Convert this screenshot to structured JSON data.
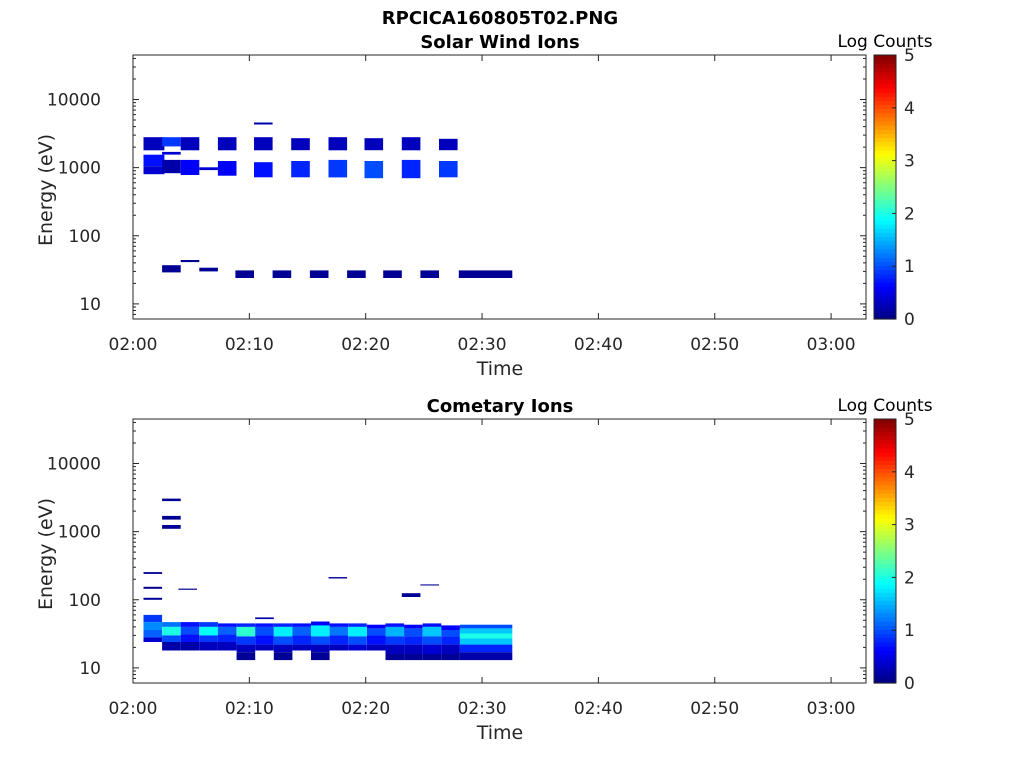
{
  "figure_title": "RPCICA160805T02.PNG",
  "chart_data": [
    {
      "type": "heatmap",
      "title": "Solar Wind Ions",
      "xlabel": "Time",
      "ylabel": "Energy (eV)",
      "x_ticks": [
        "02:00",
        "02:10",
        "02:20",
        "02:30",
        "02:40",
        "02:50",
        "03:00"
      ],
      "x_range_minutes": [
        0,
        63
      ],
      "y_scale": "log",
      "y_ticks": [
        "10",
        "100",
        "1000",
        "10000"
      ],
      "y_range": [
        6,
        45000
      ],
      "colorbar": {
        "label": "Log Counts",
        "range": [
          0,
          5
        ],
        "ticks": [
          "0",
          "1",
          "2",
          "3",
          "4",
          "5"
        ],
        "colormap": "jet"
      },
      "cells": [
        [
          0.9,
          2.7,
          1800,
          2800,
          0.3
        ],
        [
          0.9,
          2.7,
          1050,
          1550,
          0.7
        ],
        [
          0.9,
          2.7,
          800,
          1050,
          0.4
        ],
        [
          2.5,
          4.1,
          2050,
          2800,
          0.9
        ],
        [
          2.5,
          4.1,
          1550,
          1700,
          0.4
        ],
        [
          2.5,
          4.1,
          830,
          1300,
          0.2
        ],
        [
          4.1,
          5.7,
          1800,
          2800,
          0.3
        ],
        [
          4.1,
          5.7,
          780,
          1300,
          0.6
        ],
        [
          5.7,
          7.3,
          920,
          1010,
          0.4
        ],
        [
          7.3,
          8.9,
          1800,
          2800,
          0.3
        ],
        [
          7.3,
          8.9,
          760,
          1250,
          0.6
        ],
        [
          10.4,
          12.0,
          4300,
          4600,
          0.2
        ],
        [
          10.4,
          12.0,
          1800,
          2800,
          0.3
        ],
        [
          10.4,
          12.0,
          720,
          1200,
          0.7
        ],
        [
          13.6,
          15.2,
          1800,
          2700,
          0.3
        ],
        [
          13.6,
          15.2,
          720,
          1250,
          0.8
        ],
        [
          16.8,
          18.4,
          1800,
          2800,
          0.3
        ],
        [
          16.8,
          18.4,
          720,
          1300,
          0.9
        ],
        [
          19.9,
          21.5,
          1800,
          2700,
          0.3
        ],
        [
          19.9,
          21.5,
          700,
          1250,
          1.0
        ],
        [
          23.1,
          24.7,
          1800,
          2800,
          0.3
        ],
        [
          23.1,
          24.7,
          700,
          1300,
          0.8
        ],
        [
          26.3,
          27.9,
          1800,
          2650,
          0.3
        ],
        [
          26.3,
          27.9,
          720,
          1250,
          0.9
        ],
        [
          2.5,
          4.1,
          29,
          37,
          0.1
        ],
        [
          4.1,
          5.7,
          41,
          44,
          0.1
        ],
        [
          5.7,
          7.3,
          30,
          34,
          0.1
        ],
        [
          8.8,
          10.4,
          24,
          31,
          0.1
        ],
        [
          12.0,
          13.6,
          24,
          31,
          0.1
        ],
        [
          15.2,
          16.8,
          24,
          31,
          0.1
        ],
        [
          18.4,
          20.0,
          24,
          31,
          0.1
        ],
        [
          21.5,
          23.1,
          24,
          31,
          0.1
        ],
        [
          24.7,
          26.3,
          24,
          31,
          0.1
        ],
        [
          28.0,
          32.6,
          24,
          31,
          0.1
        ]
      ]
    },
    {
      "type": "heatmap",
      "title": "Cometary Ions",
      "xlabel": "Time",
      "ylabel": "Energy (eV)",
      "x_ticks": [
        "02:00",
        "02:10",
        "02:20",
        "02:30",
        "02:40",
        "02:50",
        "03:00"
      ],
      "x_range_minutes": [
        0,
        63
      ],
      "y_scale": "log",
      "y_ticks": [
        "10",
        "100",
        "1000",
        "10000"
      ],
      "y_range": [
        6,
        45000
      ],
      "colorbar": {
        "label": "Log Counts",
        "range": [
          0,
          5
        ],
        "ticks": [
          "0",
          "1",
          "2",
          "3",
          "4",
          "5"
        ],
        "colormap": "jet"
      },
      "cells": [
        [
          0.9,
          2.5,
          240,
          255,
          0.1
        ],
        [
          0.9,
          2.5,
          145,
          155,
          0.1
        ],
        [
          0.9,
          2.5,
          100,
          107,
          0.1
        ],
        [
          2.5,
          4.1,
          2800,
          3050,
          0.1
        ],
        [
          2.5,
          4.1,
          1500,
          1700,
          0.1
        ],
        [
          2.5,
          4.1,
          1100,
          1250,
          0.1
        ],
        [
          3.9,
          5.5,
          140,
          146,
          0.1
        ],
        [
          16.8,
          18.4,
          205,
          215,
          0.1
        ],
        [
          23.1,
          24.7,
          110,
          125,
          0.1
        ],
        [
          24.7,
          26.3,
          162,
          168,
          0.1
        ],
        [
          0.9,
          2.5,
          47,
          60,
          0.9
        ],
        [
          0.9,
          2.5,
          36,
          47,
          1.3
        ],
        [
          0.9,
          2.5,
          28,
          36,
          1.1
        ],
        [
          0.9,
          2.5,
          24,
          28,
          0.4
        ],
        [
          2.5,
          4.1,
          40,
          47,
          1.2
        ],
        [
          2.5,
          4.1,
          30,
          40,
          2.0
        ],
        [
          2.5,
          4.1,
          24,
          30,
          1.0
        ],
        [
          2.5,
          4.1,
          18,
          24,
          0.2
        ],
        [
          4.1,
          5.7,
          40,
          47,
          0.7
        ],
        [
          4.1,
          5.7,
          31,
          40,
          1.0
        ],
        [
          4.1,
          5.7,
          24,
          31,
          0.7
        ],
        [
          4.1,
          5.7,
          18,
          24,
          0.2
        ],
        [
          5.7,
          7.3,
          40,
          47,
          0.9
        ],
        [
          5.7,
          7.3,
          30,
          40,
          1.9
        ],
        [
          5.7,
          7.3,
          24,
          30,
          0.9
        ],
        [
          5.7,
          7.3,
          18,
          24,
          0.3
        ],
        [
          7.3,
          8.9,
          40,
          45,
          0.7
        ],
        [
          7.3,
          8.9,
          31,
          40,
          1.1
        ],
        [
          7.3,
          8.9,
          24,
          31,
          0.8
        ],
        [
          7.3,
          8.9,
          18,
          24,
          0.3
        ],
        [
          8.9,
          10.5,
          40,
          45,
          0.8
        ],
        [
          8.9,
          10.5,
          29,
          40,
          2.1
        ],
        [
          8.9,
          10.5,
          22,
          29,
          0.9
        ],
        [
          8.9,
          10.5,
          17,
          22,
          0.3
        ],
        [
          8.9,
          10.5,
          13,
          17,
          0.1
        ],
        [
          10.5,
          12.1,
          52,
          55,
          0.2
        ],
        [
          10.5,
          12.1,
          40,
          45,
          0.7
        ],
        [
          10.5,
          12.1,
          30,
          40,
          1.0
        ],
        [
          10.5,
          12.1,
          22,
          30,
          0.7
        ],
        [
          10.5,
          12.1,
          18,
          22,
          0.3
        ],
        [
          12.1,
          13.7,
          40,
          45,
          0.8
        ],
        [
          12.1,
          13.7,
          29,
          40,
          1.8
        ],
        [
          12.1,
          13.7,
          22,
          29,
          1.0
        ],
        [
          12.1,
          13.7,
          17,
          22,
          0.3
        ],
        [
          12.1,
          13.7,
          13,
          17,
          0.1
        ],
        [
          13.7,
          15.3,
          40,
          45,
          0.7
        ],
        [
          13.7,
          15.3,
          30,
          40,
          1.1
        ],
        [
          13.7,
          15.3,
          22,
          30,
          0.8
        ],
        [
          13.7,
          15.3,
          18,
          22,
          0.3
        ],
        [
          15.3,
          16.9,
          42,
          48,
          0.6
        ],
        [
          15.3,
          16.9,
          29,
          42,
          1.8
        ],
        [
          15.3,
          16.9,
          22,
          29,
          1.0
        ],
        [
          15.3,
          16.9,
          17,
          22,
          0.3
        ],
        [
          15.3,
          16.9,
          13,
          17,
          0.1
        ],
        [
          16.9,
          18.5,
          40,
          45,
          0.7
        ],
        [
          16.9,
          18.5,
          30,
          40,
          1.2
        ],
        [
          16.9,
          18.5,
          22,
          30,
          0.8
        ],
        [
          16.9,
          18.5,
          18,
          22,
          0.3
        ],
        [
          18.5,
          20.1,
          40,
          45,
          0.8
        ],
        [
          18.5,
          20.1,
          29,
          40,
          1.8
        ],
        [
          18.5,
          20.1,
          22,
          29,
          1.0
        ],
        [
          18.5,
          20.1,
          18,
          22,
          0.4
        ],
        [
          20.1,
          21.7,
          38,
          43,
          0.6
        ],
        [
          20.1,
          21.7,
          30,
          38,
          1.0
        ],
        [
          20.1,
          21.7,
          22,
          30,
          0.7
        ],
        [
          20.1,
          21.7,
          18,
          22,
          0.3
        ],
        [
          21.7,
          23.3,
          40,
          45,
          0.7
        ],
        [
          21.7,
          23.3,
          29,
          40,
          1.5
        ],
        [
          21.7,
          23.3,
          22,
          29,
          0.9
        ],
        [
          21.7,
          23.3,
          16,
          22,
          0.3
        ],
        [
          21.7,
          23.3,
          13,
          16,
          0.1
        ],
        [
          23.3,
          24.9,
          38,
          43,
          0.6
        ],
        [
          23.3,
          24.9,
          29,
          38,
          1.0
        ],
        [
          23.3,
          24.9,
          22,
          29,
          0.8
        ],
        [
          23.3,
          24.9,
          16,
          22,
          0.3
        ],
        [
          23.3,
          24.9,
          13,
          16,
          0.1
        ],
        [
          24.9,
          26.5,
          40,
          45,
          0.7
        ],
        [
          24.9,
          26.5,
          29,
          40,
          1.6
        ],
        [
          24.9,
          26.5,
          22,
          29,
          1.0
        ],
        [
          24.9,
          26.5,
          16,
          22,
          0.4
        ],
        [
          24.9,
          26.5,
          13,
          16,
          0.1
        ],
        [
          26.5,
          28.1,
          36,
          42,
          0.6
        ],
        [
          26.5,
          28.1,
          29,
          36,
          1.0
        ],
        [
          26.5,
          28.1,
          22,
          29,
          0.8
        ],
        [
          26.5,
          28.1,
          16,
          22,
          0.3
        ],
        [
          26.5,
          28.1,
          13,
          16,
          0.1
        ],
        [
          28.1,
          32.6,
          38,
          43,
          1.0
        ],
        [
          28.1,
          32.6,
          32,
          38,
          1.6
        ],
        [
          28.1,
          32.6,
          27,
          32,
          2.0
        ],
        [
          28.1,
          32.6,
          22,
          27,
          1.6
        ],
        [
          28.1,
          32.6,
          17,
          22,
          0.8
        ],
        [
          28.1,
          32.6,
          13,
          17,
          0.2
        ]
      ]
    }
  ]
}
